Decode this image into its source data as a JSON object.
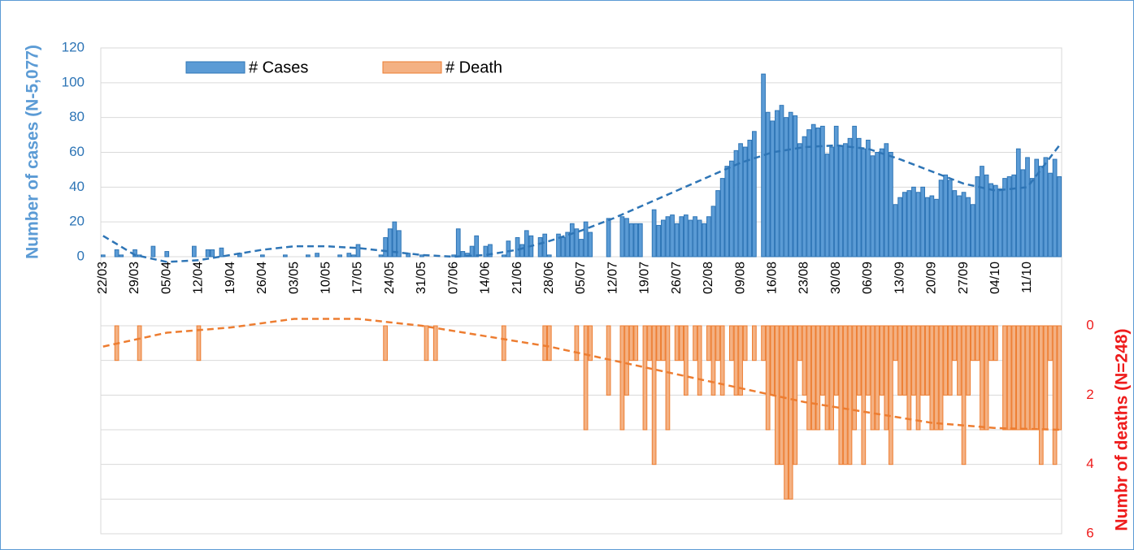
{
  "chart_data": {
    "type": "bar",
    "y_label": "Number of cases (N-5,077)",
    "y2_label": "Numbr of deaths (N=248)",
    "categories": [
      "22/03",
      null,
      null,
      null,
      null,
      null,
      null,
      "29/03",
      null,
      null,
      null,
      null,
      null,
      null,
      "05/04",
      null,
      null,
      null,
      null,
      null,
      null,
      "12/04",
      null,
      null,
      null,
      null,
      null,
      null,
      "19/04",
      null,
      null,
      null,
      null,
      null,
      null,
      "26/04",
      null,
      null,
      null,
      null,
      null,
      null,
      "03/05",
      null,
      null,
      null,
      null,
      null,
      null,
      "10/05",
      null,
      null,
      null,
      null,
      null,
      null,
      "17/05",
      null,
      null,
      null,
      null,
      null,
      null,
      "24/05",
      null,
      null,
      null,
      null,
      null,
      null,
      "31/05",
      null,
      null,
      null,
      null,
      null,
      null,
      "07/06",
      null,
      null,
      null,
      null,
      null,
      null,
      "14/06",
      null,
      null,
      null,
      null,
      null,
      null,
      "21/06",
      null,
      null,
      null,
      null,
      null,
      null,
      "28/06",
      null,
      null,
      null,
      null,
      null,
      null,
      "05/07",
      null,
      null,
      null,
      null,
      null,
      null,
      "12/07",
      null,
      null,
      null,
      null,
      null,
      null,
      "19/07",
      null,
      null,
      null,
      null,
      null,
      null,
      "26/07",
      null,
      null,
      null,
      null,
      null,
      null,
      "02/08",
      null,
      null,
      null,
      null,
      null,
      null,
      "09/08",
      null,
      null,
      null,
      null,
      null,
      null,
      "16/08",
      null,
      null,
      null,
      null,
      null,
      null,
      "23/08",
      null,
      null,
      null,
      null,
      null,
      null,
      "30/08",
      null,
      null,
      null,
      null,
      null,
      null,
      "06/09",
      null,
      null,
      null,
      null,
      null,
      null,
      "13/09",
      null,
      null,
      null,
      null,
      null,
      null,
      "20/09",
      null,
      null,
      null,
      null,
      null,
      null,
      "27/09",
      null,
      null,
      null,
      null,
      null,
      null,
      "04/10",
      null,
      null,
      null,
      null,
      null,
      null,
      "11/10",
      null,
      null,
      null,
      null,
      null,
      null,
      null
    ],
    "series": [
      {
        "name": "# Cases",
        "color": "#5b9bd5",
        "stroke": "#2e75b6",
        "values": [
          1,
          0,
          0,
          4,
          1,
          0,
          0,
          4,
          1,
          0,
          0,
          6,
          0,
          0,
          3,
          0,
          0,
          0,
          0,
          0,
          6,
          0,
          0,
          4,
          4,
          0,
          5,
          0,
          0,
          0,
          2,
          0,
          0,
          0,
          0,
          1,
          0,
          0,
          0,
          0,
          1,
          0,
          0,
          0,
          0,
          1,
          0,
          2,
          0,
          0,
          0,
          0,
          1,
          0,
          2,
          1,
          7,
          0,
          0,
          0,
          0,
          1,
          11,
          16,
          20,
          15,
          0,
          2,
          0,
          0,
          1,
          0,
          0,
          0,
          0,
          0,
          0,
          1,
          16,
          3,
          2,
          6,
          12,
          0,
          6,
          7,
          0,
          0,
          1,
          9,
          0,
          11,
          7,
          15,
          12,
          0,
          11,
          13,
          1,
          0,
          13,
          11,
          14,
          19,
          16,
          10,
          20,
          14,
          0,
          0,
          0,
          22,
          0,
          0,
          23,
          22,
          19,
          19,
          19,
          0,
          0,
          27,
          18,
          21,
          23,
          24,
          19,
          23,
          24,
          21,
          23,
          21,
          19,
          23,
          29,
          38,
          45,
          52,
          55,
          61,
          65,
          63,
          67,
          72,
          0,
          105,
          83,
          78,
          84,
          87,
          80,
          83,
          81,
          65,
          69,
          73,
          76,
          74,
          75,
          59,
          63,
          75,
          64,
          65,
          68,
          75,
          68,
          62,
          67,
          58,
          60,
          62,
          65,
          60,
          30,
          34,
          37,
          38,
          40,
          37,
          40,
          34,
          35,
          33,
          44,
          47,
          44,
          38,
          35,
          37,
          34,
          30,
          46,
          52,
          47,
          42,
          41,
          39,
          45,
          46,
          47,
          62,
          50,
          57,
          45,
          56,
          52,
          57,
          48,
          56,
          46
        ],
        "trend": {
          "x": [
            0,
            7,
            14,
            21,
            28,
            35,
            42,
            49,
            56,
            63,
            70,
            77,
            84,
            91,
            98,
            105,
            112,
            119,
            126,
            133,
            140,
            147,
            154,
            161,
            168,
            175,
            182,
            189,
            196,
            203,
            210
          ],
          "values": [
            12,
            1,
            -3,
            -2,
            1,
            4,
            6,
            6,
            5,
            3,
            1,
            0,
            1,
            4,
            9,
            15,
            22,
            30,
            38,
            46,
            54,
            60,
            63,
            64,
            62,
            56,
            49,
            42,
            38,
            40,
            64
          ]
        }
      },
      {
        "name": "# Death",
        "color": "#f4b183",
        "stroke": "#ed7d31",
        "axis": "y2",
        "values": [
          0,
          0,
          0,
          1,
          0,
          0,
          0,
          0,
          1,
          0,
          0,
          0,
          0,
          0,
          0,
          0,
          0,
          0,
          0,
          0,
          0,
          1,
          0,
          0,
          0,
          0,
          0,
          0,
          0,
          0,
          0,
          0,
          0,
          0,
          0,
          0,
          0,
          0,
          0,
          0,
          0,
          0,
          0,
          0,
          0,
          0,
          0,
          0,
          0,
          0,
          0,
          0,
          0,
          0,
          0,
          0,
          0,
          0,
          0,
          0,
          0,
          0,
          1,
          0,
          0,
          0,
          0,
          0,
          0,
          0,
          0,
          1,
          0,
          1,
          0,
          0,
          0,
          0,
          0,
          0,
          0,
          0,
          0,
          0,
          0,
          0,
          0,
          0,
          1,
          0,
          0,
          0,
          0,
          0,
          0,
          0,
          0,
          1,
          1,
          0,
          0,
          0,
          0,
          0,
          1,
          0,
          3,
          1,
          0,
          0,
          0,
          2,
          0,
          0,
          3,
          2,
          1,
          1,
          0,
          3,
          1,
          4,
          1,
          1,
          3,
          0,
          1,
          1,
          2,
          0,
          1,
          2,
          0,
          1,
          2,
          1,
          2,
          0,
          1,
          2,
          2,
          1,
          0,
          1,
          0,
          1,
          3,
          2,
          4,
          4,
          5,
          5,
          4,
          1,
          2,
          3,
          3,
          3,
          2,
          3,
          3,
          2,
          4,
          4,
          4,
          3,
          2,
          4,
          2,
          3,
          3,
          2,
          3,
          4,
          1,
          2,
          2,
          3,
          2,
          3,
          2,
          2,
          3,
          3,
          3,
          2,
          2,
          1,
          2,
          4,
          2,
          1,
          1,
          3,
          3,
          1,
          1,
          0,
          3,
          3,
          3,
          3,
          3,
          3,
          3,
          3,
          4,
          3,
          1,
          4,
          3
        ],
        "trend": {
          "x": [
            0,
            14,
            28,
            42,
            56,
            70,
            84,
            98,
            112,
            126,
            140,
            154,
            168,
            182,
            196,
            210
          ],
          "values": [
            0.6,
            0.2,
            0.05,
            -0.2,
            -0.2,
            0,
            0.3,
            0.6,
            1.0,
            1.4,
            1.8,
            2.2,
            2.5,
            2.8,
            2.95,
            3
          ]
        }
      }
    ],
    "ylim": [
      0,
      120
    ],
    "yticks": [
      0,
      20,
      40,
      60,
      80,
      100,
      120
    ],
    "y2lim": [
      0,
      6
    ],
    "y2ticks": [
      0,
      2,
      4,
      6
    ],
    "y2_inverted": true,
    "grid": true,
    "legend": "top-left"
  }
}
